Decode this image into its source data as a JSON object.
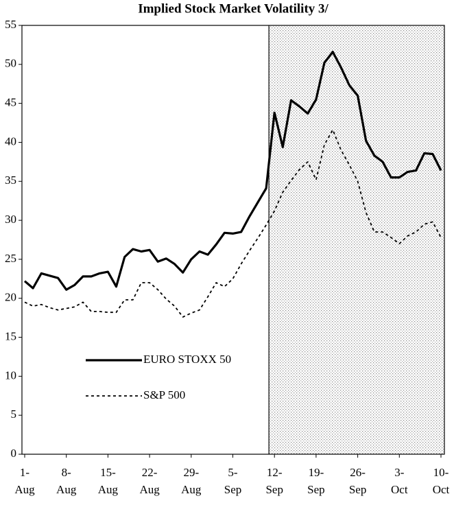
{
  "chart_data": {
    "type": "line",
    "title": "Implied Stock Market Volatility 3/",
    "categories": [
      "1-Aug",
      null,
      null,
      null,
      null,
      "8-Aug",
      null,
      null,
      null,
      null,
      "15-Aug",
      null,
      null,
      null,
      null,
      "22-Aug",
      null,
      null,
      null,
      null,
      "29-Aug",
      null,
      null,
      null,
      null,
      "5-Sep",
      null,
      null,
      null,
      null,
      "12-Sep",
      null,
      null,
      null,
      null,
      "19-Sep",
      null,
      null,
      null,
      null,
      "26-Sep",
      null,
      null,
      null,
      null,
      "3-Oct",
      null,
      null,
      null,
      null,
      "10-Oct"
    ],
    "series": [
      {
        "name": "EURO STOXX 50",
        "color": "#000000",
        "style": "solid",
        "values": [
          22.2,
          21.3,
          23.2,
          22.9,
          22.6,
          21.1,
          21.7,
          22.8,
          22.8,
          23.2,
          23.4,
          21.5,
          25.3,
          26.3,
          26.0,
          26.2,
          24.7,
          25.1,
          24.4,
          23.3,
          25.0,
          26.0,
          25.6,
          26.9,
          28.4,
          28.3,
          28.5,
          30.5,
          32.3,
          34.1,
          43.8,
          39.4,
          45.4,
          44.6,
          43.7,
          45.5,
          50.2,
          51.6,
          49.6,
          47.3,
          46.0,
          40.2,
          38.3,
          37.5,
          35.5,
          35.5,
          36.2,
          36.4,
          38.6,
          38.5,
          36.4
        ]
      },
      {
        "name": "S&P 500",
        "color": "#000000",
        "style": "dashed",
        "values": [
          19.5,
          19.0,
          19.2,
          18.8,
          18.5,
          18.7,
          18.9,
          19.5,
          18.3,
          18.3,
          18.2,
          18.2,
          19.8,
          19.8,
          22.0,
          22.0,
          21.1,
          19.9,
          19.0,
          17.6,
          18.1,
          18.5,
          20.2,
          22.0,
          21.5,
          22.5,
          24.4,
          26.1,
          27.7,
          29.4,
          31.2,
          33.6,
          35.1,
          36.5,
          37.5,
          35.2,
          39.7,
          41.6,
          39.0,
          37.1,
          35.0,
          31.0,
          28.5,
          28.5,
          27.8,
          27.0,
          28.0,
          28.5,
          29.5,
          29.8,
          27.8
        ]
      }
    ],
    "ylim": [
      0,
      55
    ],
    "yticks": [
      0,
      5,
      10,
      15,
      20,
      25,
      30,
      35,
      40,
      45,
      50,
      55
    ],
    "grid": false,
    "legend": "lower-left"
  }
}
